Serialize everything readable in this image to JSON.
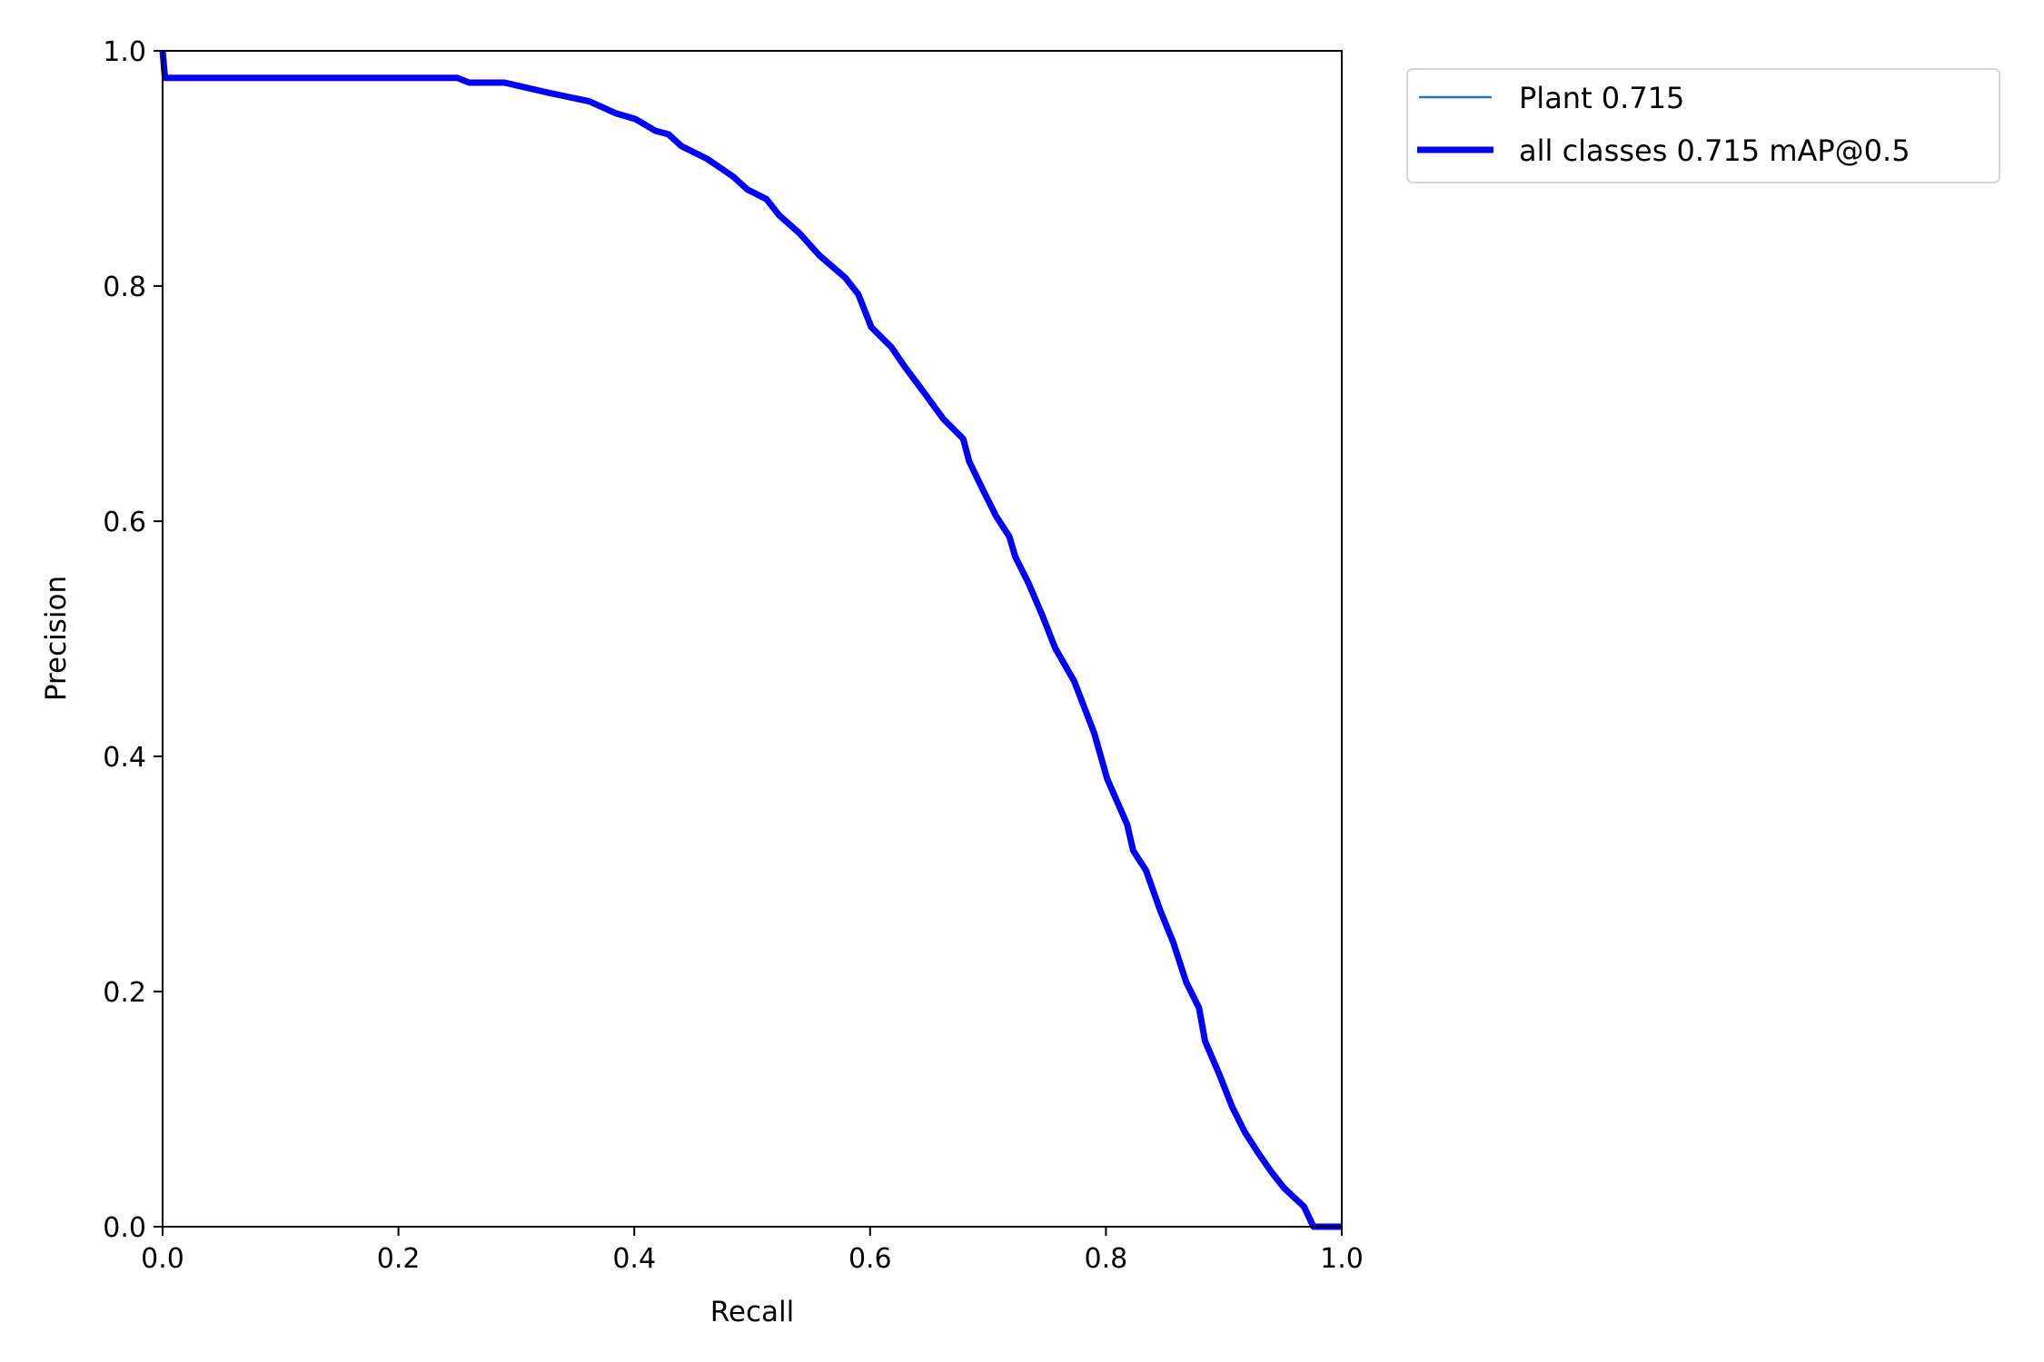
{
  "chart_data": {
    "type": "line",
    "title": "",
    "xlabel": "Recall",
    "ylabel": "Precision",
    "xlim": [
      0,
      1
    ],
    "ylim": [
      0,
      1
    ],
    "grid": false,
    "legend_position": "outside-top-right",
    "xticks": [
      "0.0",
      "0.2",
      "0.4",
      "0.6",
      "0.8",
      "1.0"
    ],
    "yticks": [
      "0.0",
      "0.2",
      "0.4",
      "0.6",
      "0.8",
      "1.0"
    ],
    "x": [
      0,
      0.002,
      0.25,
      0.26,
      0.29,
      0.307,
      0.329,
      0.362,
      0.384,
      0.401,
      0.418,
      0.429,
      0.44,
      0.462,
      0.484,
      0.496,
      0.512,
      0.523,
      0.54,
      0.557,
      0.579,
      0.59,
      0.601,
      0.618,
      0.629,
      0.646,
      0.662,
      0.679,
      0.684,
      0.696,
      0.707,
      0.718,
      0.723,
      0.734,
      0.746,
      0.757,
      0.773,
      0.79,
      0.801,
      0.818,
      0.823,
      0.834,
      0.846,
      0.857,
      0.868,
      0.879,
      0.884,
      0.896,
      0.907,
      0.918,
      0.929,
      0.94,
      0.951,
      0.968,
      0.976,
      1.0
    ],
    "series": [
      {
        "name": "Plant 0.715",
        "color": "#1f77b4",
        "values": [
          1.0,
          0.977,
          0.977,
          0.973,
          0.973,
          0.969,
          0.964,
          0.957,
          0.947,
          0.942,
          0.932,
          0.929,
          0.919,
          0.908,
          0.893,
          0.882,
          0.874,
          0.86,
          0.845,
          0.826,
          0.807,
          0.793,
          0.765,
          0.748,
          0.732,
          0.709,
          0.687,
          0.67,
          0.651,
          0.626,
          0.604,
          0.587,
          0.57,
          0.548,
          0.52,
          0.492,
          0.464,
          0.42,
          0.381,
          0.342,
          0.32,
          0.303,
          0.269,
          0.242,
          0.208,
          0.186,
          0.158,
          0.13,
          0.102,
          0.08,
          0.063,
          0.047,
          0.033,
          0.017,
          0.0,
          0.0
        ]
      },
      {
        "name": "all classes 0.715 mAP@0.5",
        "color": "#0000ff",
        "values": [
          1.0,
          0.977,
          0.977,
          0.973,
          0.973,
          0.969,
          0.964,
          0.957,
          0.947,
          0.942,
          0.932,
          0.929,
          0.919,
          0.908,
          0.893,
          0.882,
          0.874,
          0.86,
          0.845,
          0.826,
          0.807,
          0.793,
          0.765,
          0.748,
          0.732,
          0.709,
          0.687,
          0.67,
          0.651,
          0.626,
          0.604,
          0.587,
          0.57,
          0.548,
          0.52,
          0.492,
          0.464,
          0.42,
          0.381,
          0.342,
          0.32,
          0.303,
          0.269,
          0.242,
          0.208,
          0.186,
          0.158,
          0.13,
          0.102,
          0.08,
          0.063,
          0.047,
          0.033,
          0.017,
          0.0,
          0.0
        ]
      }
    ]
  }
}
